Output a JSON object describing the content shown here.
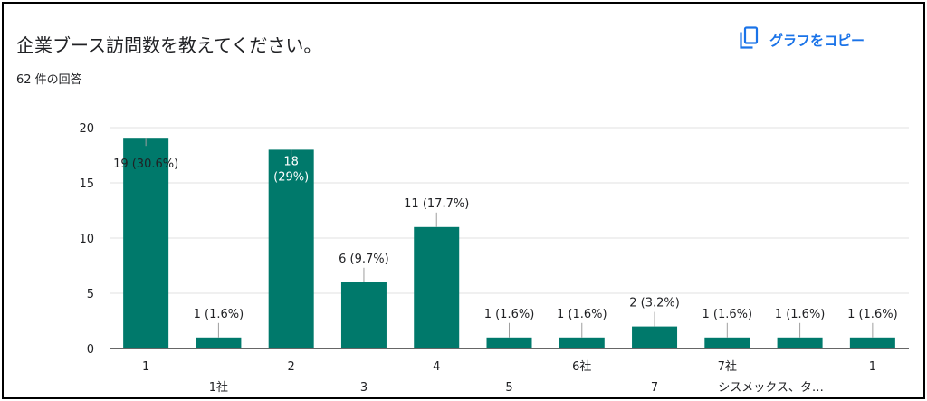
{
  "question": {
    "title": "企業ブース訪問数を教えてください。",
    "response_count": "62 件の回答"
  },
  "toolbar": {
    "copy_label": "グラフをコピー",
    "copy_icon": "copy-icon"
  },
  "colors": {
    "bar": "#00796b",
    "accent": "#1a73e8",
    "text": "#202124",
    "axis": "#333333",
    "grid": "#e0e0e0"
  },
  "chart_data": {
    "type": "bar",
    "categories": [
      "1",
      "1社",
      "2",
      "3",
      "4",
      "5",
      "6社",
      "7",
      "7社",
      "シスメックス、タ…",
      "1"
    ],
    "values": [
      19,
      1,
      18,
      6,
      11,
      1,
      1,
      2,
      1,
      1,
      1
    ],
    "data_labels": [
      "19 (30.6%)",
      "1 (1.6%)",
      "18 (29%)",
      "6 (9.7%)",
      "11 (17.7%)",
      "1 (1.6%)",
      "1 (1.6%)",
      "2 (3.2%)",
      "1 (1.6%)",
      "1 (1.6%)",
      "1 (1.6%)"
    ],
    "yticks": [
      "0",
      "5",
      "10",
      "15",
      "20"
    ],
    "ylim": [
      0,
      20
    ],
    "grid": true,
    "legend": "none"
  }
}
